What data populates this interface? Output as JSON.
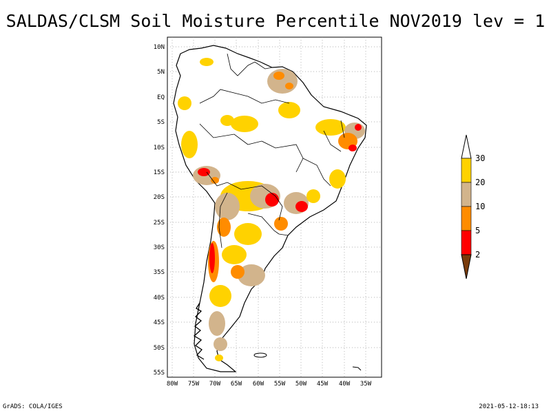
{
  "title": "SALDAS/CLSM Soil Moisture Percentile NOV2019 lev = 1",
  "lat_labels": [
    "10N",
    "5N",
    "EQ",
    "5S",
    "10S",
    "15S",
    "20S",
    "25S",
    "30S",
    "35S",
    "40S",
    "45S",
    "50S",
    "55S"
  ],
  "lon_labels": [
    "80W",
    "75W",
    "70W",
    "65W",
    "60W",
    "55W",
    "50W",
    "45W",
    "40W",
    "35W"
  ],
  "legend": {
    "labels": [
      "2",
      "5",
      "10",
      "20",
      "30"
    ],
    "colors": [
      "#7a3c0c",
      "#ff0000",
      "#ff8c00",
      "#d2b48c",
      "#ffd200",
      "#ffffff"
    ]
  },
  "footer": {
    "left": "GrADS: COLA/IGES",
    "right": "2021-05-12-18:13"
  }
}
